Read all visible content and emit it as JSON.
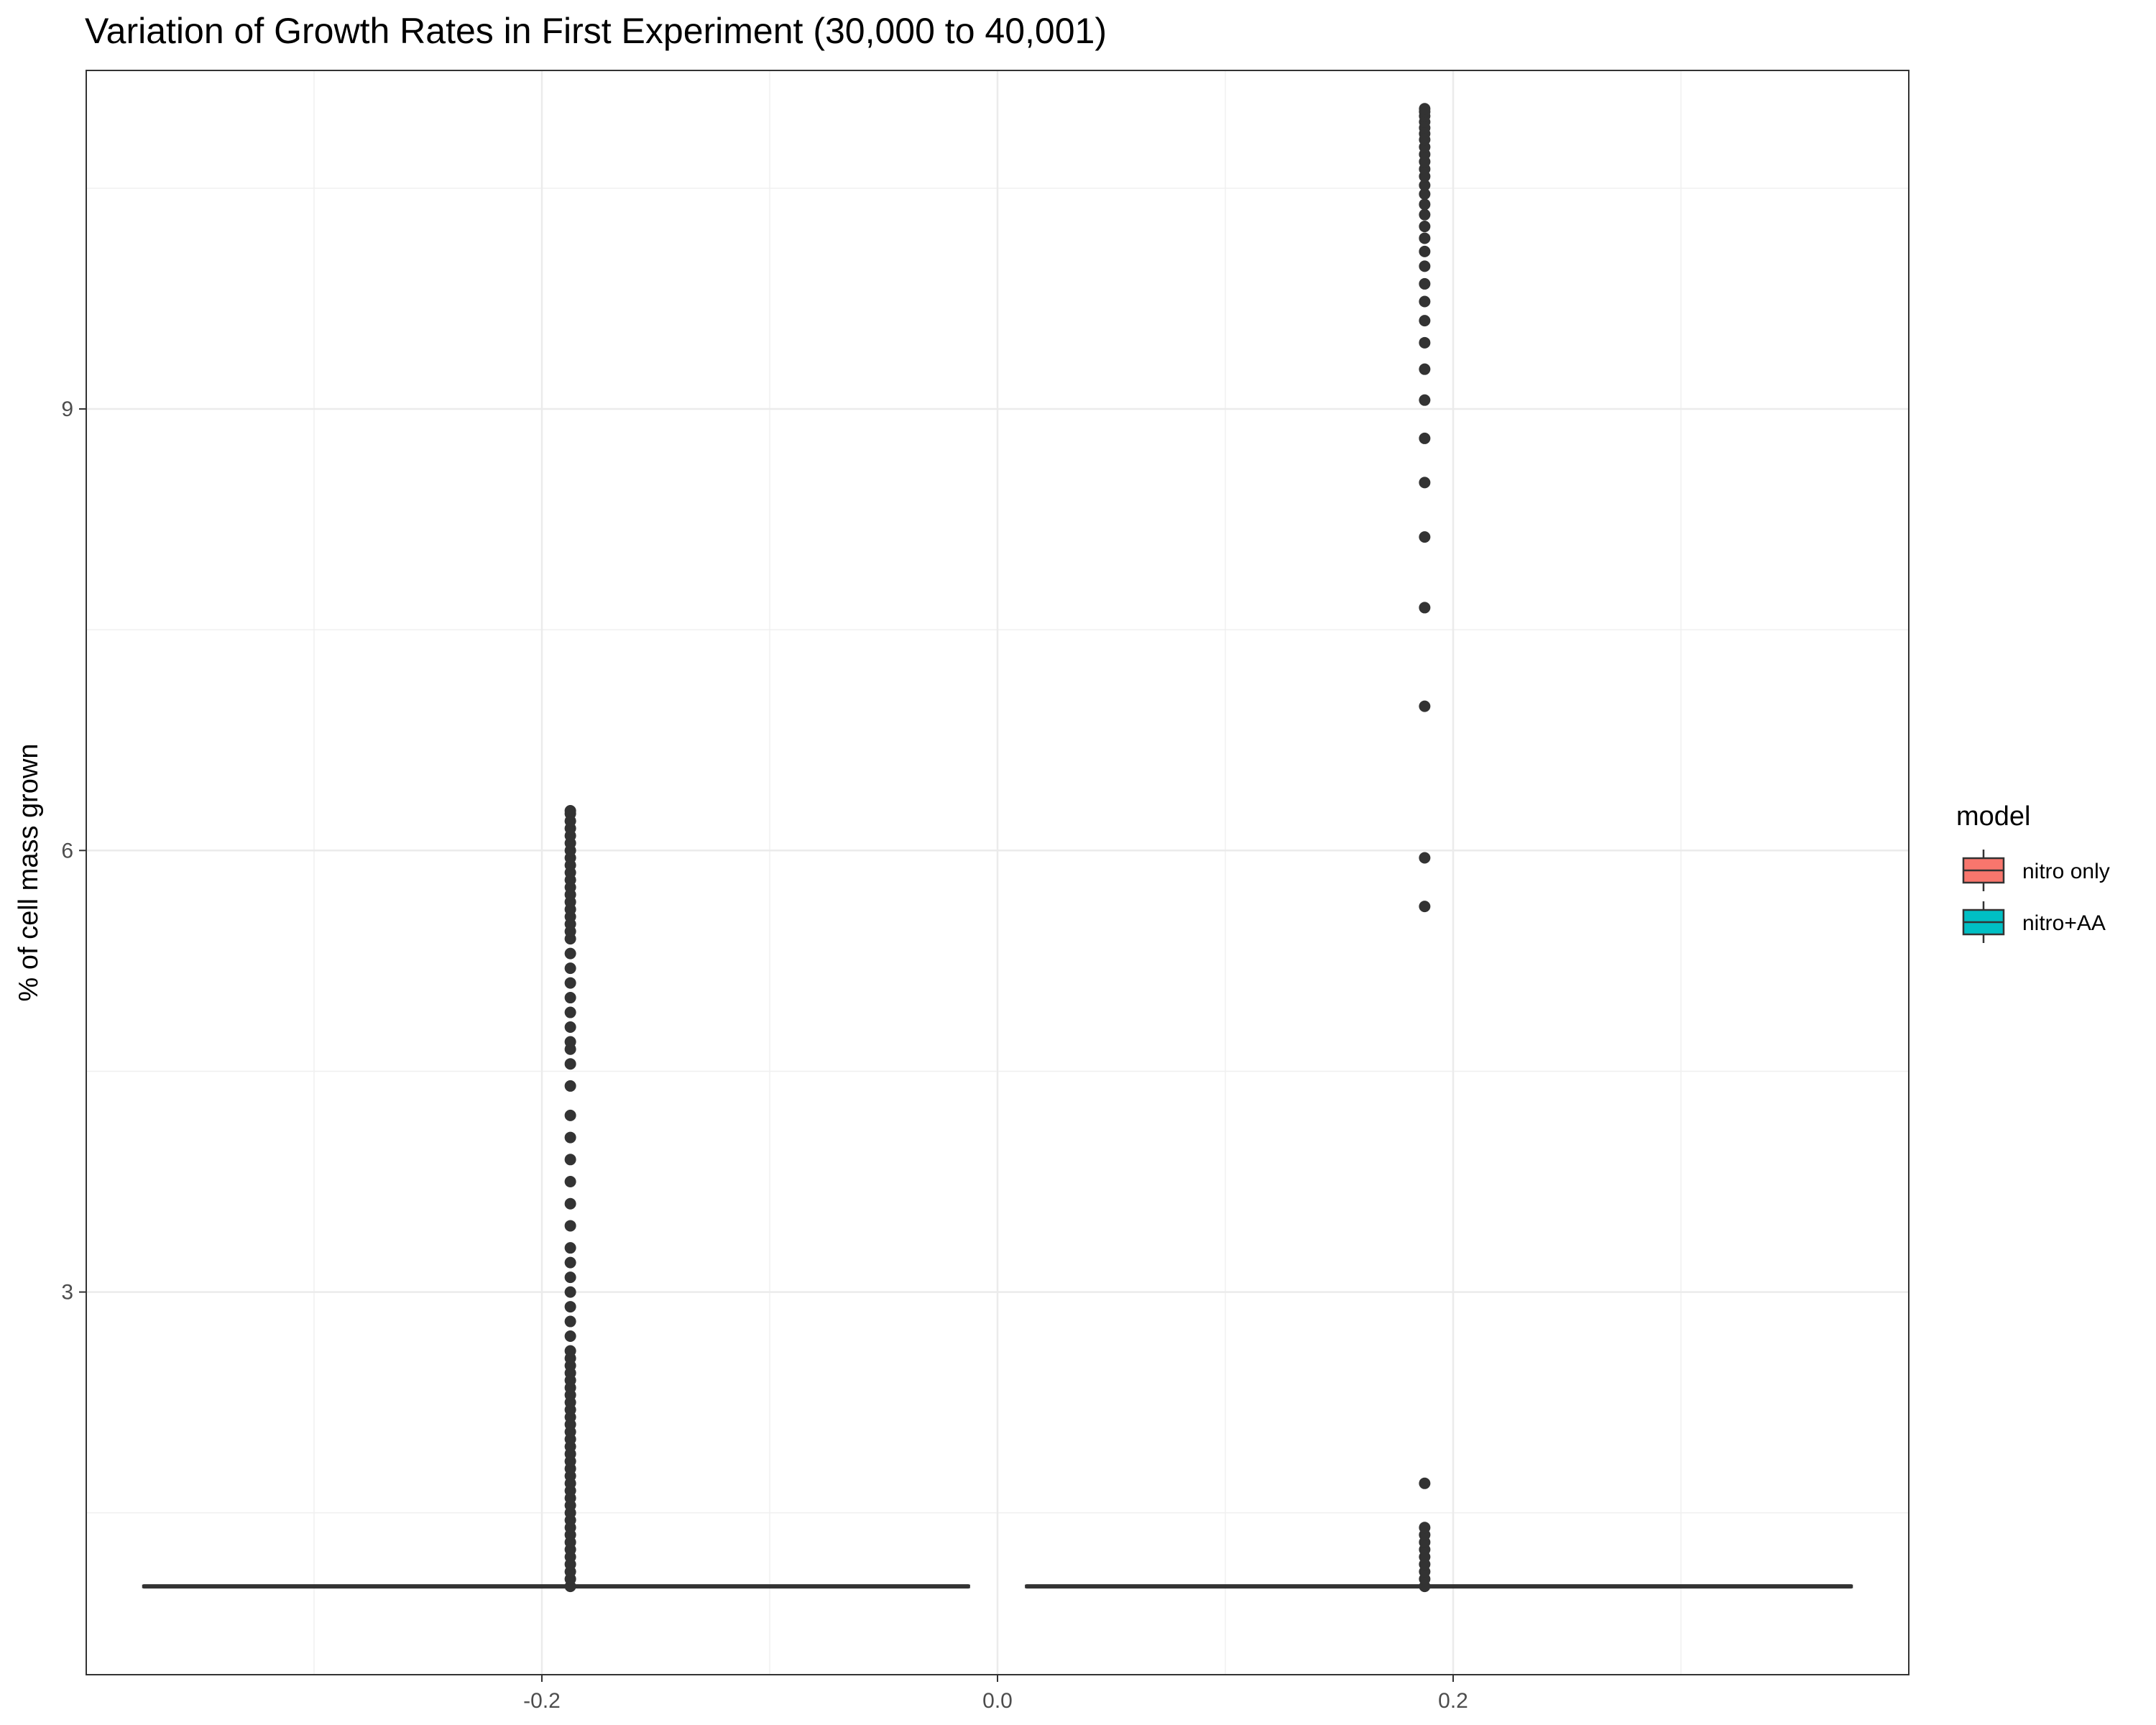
{
  "chart_data": {
    "type": "boxplot",
    "title": "Variation of Growth Rates in First Experiment (30,000 to 40,001)",
    "xlabel": "",
    "ylabel": "% of cell mass grown",
    "xlim": [
      -0.4,
      0.4
    ],
    "ylim": [
      0.4,
      11.3
    ],
    "x_ticks": [
      -0.2,
      0.0,
      0.2
    ],
    "x_tick_labels": [
      "-0.2",
      "0.0",
      "0.2"
    ],
    "y_ticks": [
      3,
      6,
      9
    ],
    "y_tick_labels": [
      "3",
      "6",
      "9"
    ],
    "grid": true,
    "legend": {
      "title": "model",
      "position": "right",
      "entries": [
        {
          "label": "nitro only",
          "color": "#F8766D"
        },
        {
          "label": "nitro+AA",
          "color": "#00BFC4"
        }
      ]
    },
    "series": [
      {
        "name": "nitro only",
        "color": "#F8766D",
        "box_xmin": -0.375,
        "box_xmax": -0.0125,
        "point_x": -0.1875,
        "median": 1.0,
        "q1": 1.0,
        "q3": 1.0,
        "outliers": [
          1.0,
          1.05,
          1.1,
          1.15,
          1.2,
          1.25,
          1.3,
          1.35,
          1.4,
          1.45,
          1.5,
          1.55,
          1.6,
          1.65,
          1.7,
          1.75,
          1.8,
          1.85,
          1.9,
          1.95,
          2.0,
          2.05,
          2.1,
          2.15,
          2.2,
          2.25,
          2.3,
          2.35,
          2.4,
          2.45,
          2.5,
          2.55,
          2.6,
          2.7,
          2.8,
          2.9,
          3.0,
          3.1,
          3.2,
          3.3,
          3.45,
          3.6,
          3.75,
          3.9,
          4.05,
          4.2,
          4.4,
          4.55,
          4.65,
          4.7,
          4.8,
          4.9,
          5.0,
          5.1,
          5.2,
          5.3,
          5.4,
          5.45,
          5.5,
          5.55,
          5.6,
          5.65,
          5.7,
          5.75,
          5.8,
          5.85,
          5.9,
          5.95,
          6.0,
          6.05,
          6.1,
          6.15,
          6.2,
          6.25,
          6.27
        ]
      },
      {
        "name": "nitro+AA",
        "color": "#00BFC4",
        "box_xmin": 0.0125,
        "box_xmax": 0.375,
        "point_x": 0.1875,
        "median": 1.0,
        "q1": 1.0,
        "q3": 1.0,
        "outliers": [
          1.0,
          1.05,
          1.1,
          1.15,
          1.2,
          1.25,
          1.3,
          1.35,
          1.4,
          1.7,
          5.62,
          5.95,
          6.98,
          7.65,
          8.13,
          8.5,
          8.8,
          9.06,
          9.27,
          9.45,
          9.6,
          9.73,
          9.85,
          9.97,
          10.07,
          10.16,
          10.24,
          10.32,
          10.39,
          10.46,
          10.52,
          10.58,
          10.63,
          10.68,
          10.73,
          10.78,
          10.83,
          10.87,
          10.91,
          10.95,
          10.99,
          11.02,
          11.04
        ]
      }
    ]
  }
}
